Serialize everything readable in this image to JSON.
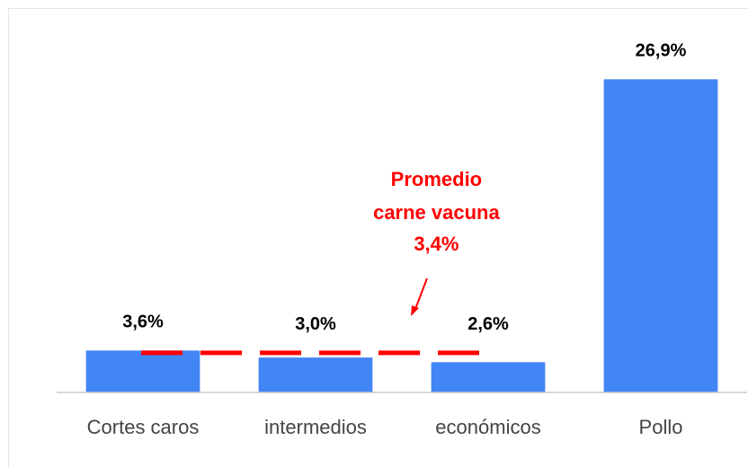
{
  "chart_data": {
    "type": "bar",
    "categories": [
      "Cortes caros",
      "intermedios",
      "económicos",
      "Pollo"
    ],
    "values": [
      3.6,
      3.0,
      2.6,
      26.9
    ],
    "value_labels": [
      "3,6%",
      "3,0%",
      "2,6%",
      "26,9%"
    ],
    "color": "#4285f4",
    "ylim": [
      0,
      27
    ],
    "average": {
      "text": [
        "Promedio",
        "carne vacuna"
      ],
      "value": 3.4,
      "label": "3,4%",
      "color": "#ff0000"
    }
  }
}
